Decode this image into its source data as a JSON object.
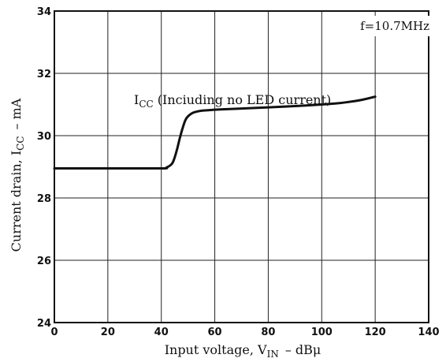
{
  "chart_data": {
    "type": "line",
    "title": "",
    "condition": "f=10.7MHz",
    "xlabel": {
      "main": "Input voltage, V",
      "sub": "IN",
      "unit": "–   dBμ"
    },
    "ylabel": {
      "main": "Current drain, I",
      "sub": "CC",
      "unit": "–   mA"
    },
    "xlim": [
      0,
      140
    ],
    "ylim": [
      24,
      34
    ],
    "xticks": [
      0,
      20,
      40,
      60,
      80,
      100,
      120,
      140
    ],
    "yticks": [
      24,
      26,
      28,
      30,
      32,
      34
    ],
    "grid": true,
    "series": [
      {
        "name": "ICC (Inciuding no LED current)",
        "name_main": "I",
        "name_sub": "CC",
        "name_rest": " (Inciuding no LED current)",
        "x": [
          0,
          20,
          40,
          42,
          44,
          45,
          46,
          47,
          48,
          49,
          50,
          52,
          55,
          58,
          62,
          70,
          80,
          90,
          100,
          105,
          110,
          115,
          120
        ],
        "y": [
          28.95,
          28.95,
          28.95,
          28.98,
          29.1,
          29.3,
          29.6,
          29.95,
          30.25,
          30.5,
          30.62,
          30.74,
          30.8,
          30.82,
          30.84,
          30.87,
          30.91,
          30.95,
          31.0,
          31.03,
          31.08,
          31.15,
          31.25
        ]
      }
    ]
  }
}
